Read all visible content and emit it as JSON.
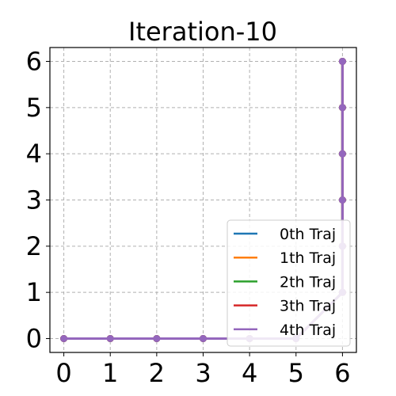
{
  "chart_data": {
    "type": "line",
    "title": "Iteration-10",
    "xlabel": "",
    "ylabel": "",
    "xlim": [
      -0.3,
      6.3
    ],
    "ylim": [
      -0.3,
      6.3
    ],
    "xticks": [
      0,
      1,
      2,
      3,
      4,
      5,
      6
    ],
    "yticks": [
      0,
      1,
      2,
      3,
      4,
      5,
      6
    ],
    "grid": true,
    "legend_position": "bottom-right",
    "series": [
      {
        "name": "0th Traj",
        "color": "#1f77b4",
        "x": [
          0,
          1,
          2,
          3,
          4,
          5,
          6,
          6,
          6,
          6,
          6,
          6,
          6
        ],
        "y": [
          0,
          0,
          0,
          0,
          0,
          0,
          1,
          2,
          3,
          4,
          5,
          6,
          6
        ]
      },
      {
        "name": "1th Traj",
        "color": "#ff7f0e",
        "x": [
          0,
          1,
          2,
          3,
          4,
          5,
          6,
          6,
          6,
          6,
          6,
          6,
          6
        ],
        "y": [
          0,
          0,
          0,
          0,
          0,
          0,
          1,
          2,
          3,
          4,
          5,
          6,
          6
        ]
      },
      {
        "name": "2th Traj",
        "color": "#2ca02c",
        "x": [
          0,
          1,
          2,
          3,
          4,
          5,
          6,
          6,
          6,
          6,
          6,
          6,
          6
        ],
        "y": [
          0,
          0,
          0,
          0,
          0,
          0,
          1,
          2,
          3,
          4,
          5,
          6,
          6
        ]
      },
      {
        "name": "3th Traj",
        "color": "#d62728",
        "x": [
          0,
          1,
          2,
          3,
          4,
          5,
          6,
          6,
          6,
          6,
          6,
          6,
          6
        ],
        "y": [
          0,
          0,
          0,
          0,
          0,
          0,
          1,
          2,
          3,
          4,
          5,
          6,
          6
        ]
      },
      {
        "name": "4th Traj",
        "color": "#9467bd",
        "x": [
          0,
          1,
          2,
          3,
          4,
          5,
          6,
          6,
          6,
          6,
          6,
          6,
          6
        ],
        "y": [
          0,
          0,
          0,
          0,
          0,
          0,
          1,
          2,
          3,
          4,
          5,
          6,
          6
        ]
      }
    ]
  }
}
